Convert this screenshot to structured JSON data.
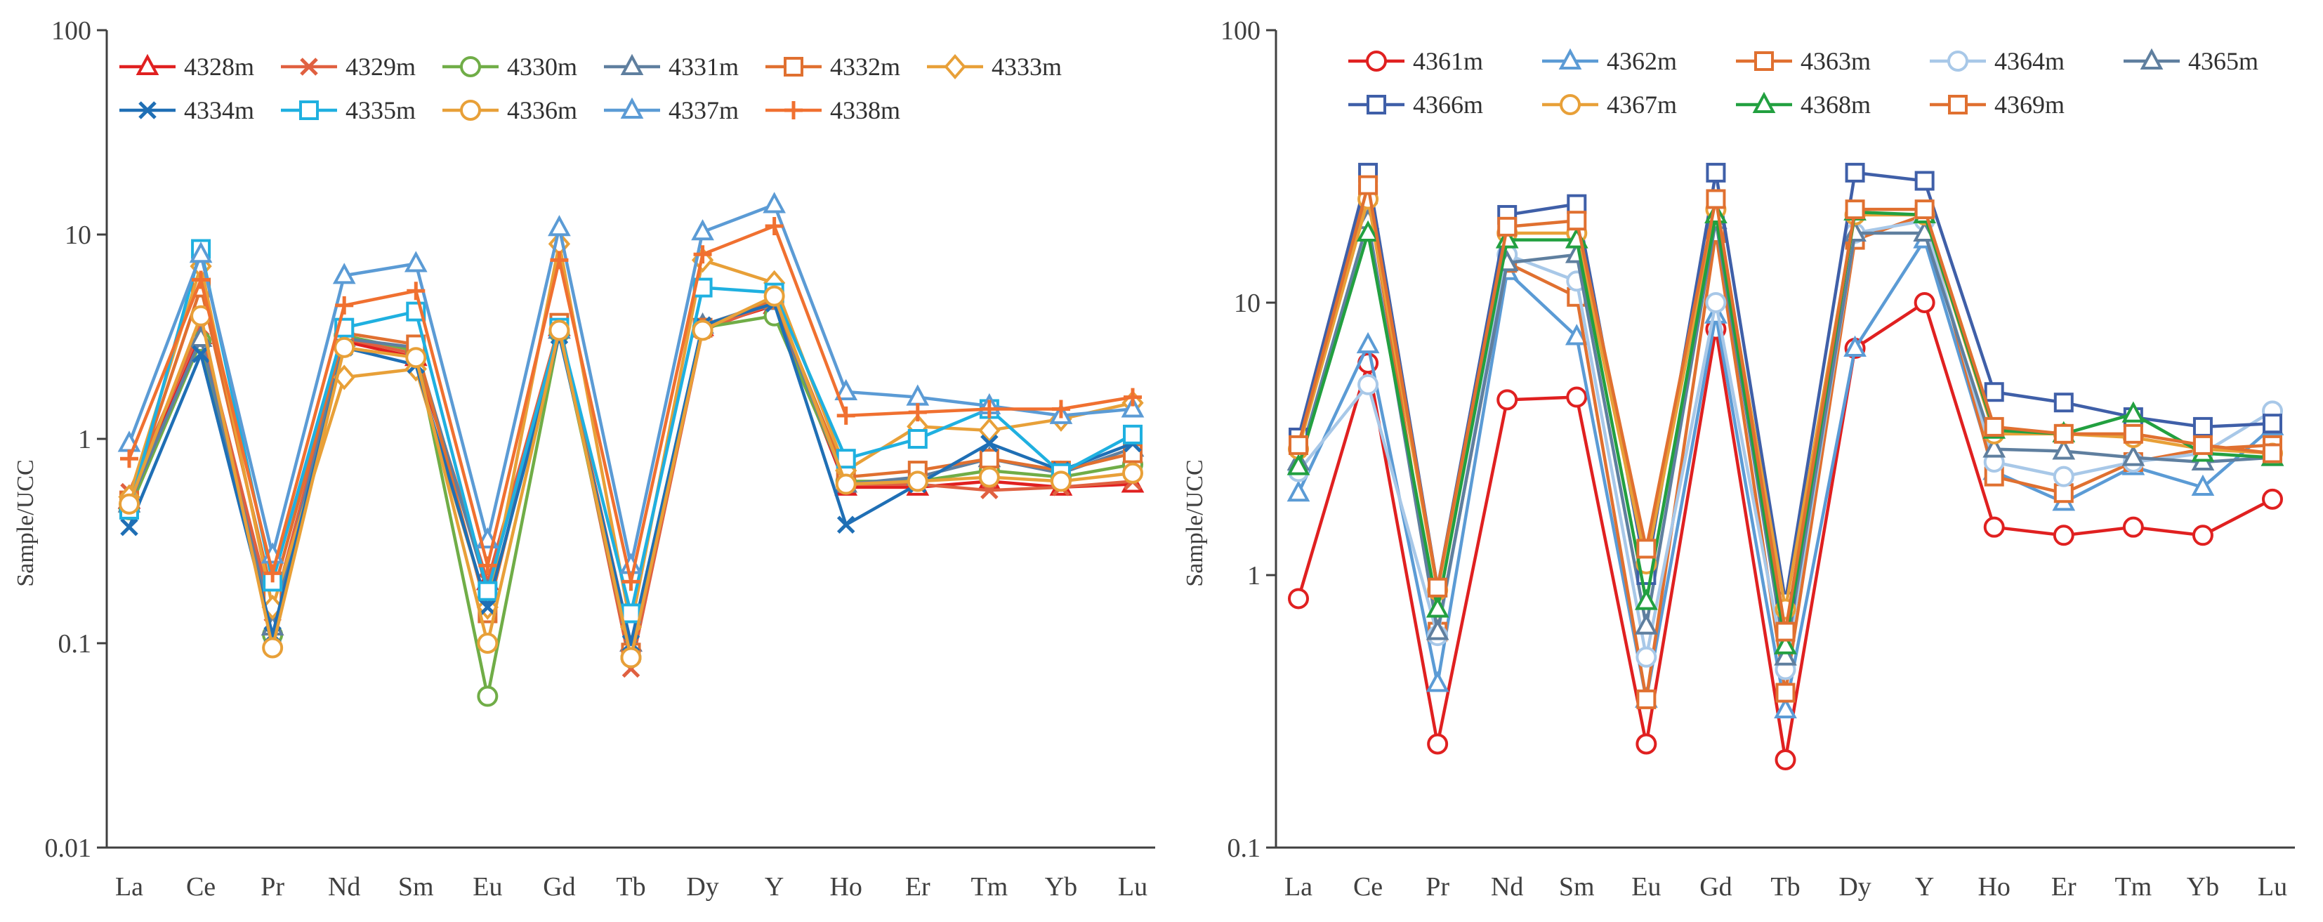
{
  "chart_data": [
    {
      "type": "line",
      "yscale": "log",
      "ylabel": "Sample/UCC",
      "ylim": [
        0.01,
        100
      ],
      "yticks": [
        "0.01",
        "0.1",
        "1",
        "10",
        "100"
      ],
      "categories": [
        "La",
        "Ce",
        "Pr",
        "Nd",
        "Sm",
        "Eu",
        "Gd",
        "Tb",
        "Dy",
        "Y",
        "Ho",
        "Er",
        "Tm",
        "Yb",
        "Lu"
      ],
      "grid": false,
      "legend": "top",
      "series": [
        {
          "name": "4328m",
          "color": "#e02020",
          "marker": "triangle",
          "values": [
            0.5,
            3.2,
            0.12,
            3.0,
            2.5,
            0.2,
            3.5,
            0.1,
            3.5,
            4.5,
            0.58,
            0.58,
            0.62,
            0.58,
            0.6
          ]
        },
        {
          "name": "4329m",
          "color": "#e06040",
          "marker": "x",
          "values": [
            0.55,
            3.5,
            0.14,
            3.1,
            2.6,
            0.2,
            3.6,
            0.075,
            3.4,
            4.6,
            0.6,
            0.6,
            0.56,
            0.58,
            0.62
          ]
        },
        {
          "name": "4330m",
          "color": "#70ad47",
          "marker": "circle",
          "values": [
            0.45,
            3.0,
            0.11,
            3.2,
            2.7,
            0.055,
            3.3,
            0.085,
            3.5,
            4.0,
            0.62,
            0.62,
            0.7,
            0.65,
            0.75
          ]
        },
        {
          "name": "4331m",
          "color": "#5f7f9f",
          "marker": "triangle",
          "values": [
            0.48,
            3.1,
            0.12,
            3.1,
            2.8,
            0.18,
            3.4,
            0.1,
            3.6,
            4.7,
            0.6,
            0.65,
            0.8,
            0.68,
            0.9
          ]
        },
        {
          "name": "4332m",
          "color": "#e07030",
          "marker": "square",
          "values": [
            0.5,
            5.5,
            0.17,
            3.3,
            2.9,
            0.14,
            3.7,
            0.09,
            3.5,
            4.8,
            0.65,
            0.7,
            0.8,
            0.7,
            0.85
          ]
        },
        {
          "name": "4333m",
          "color": "#e8a038",
          "marker": "diamond",
          "values": [
            0.52,
            7.0,
            0.15,
            2.0,
            2.2,
            0.15,
            9.0,
            0.12,
            7.5,
            5.8,
            0.7,
            1.15,
            1.1,
            1.25,
            1.5
          ]
        },
        {
          "name": "4334m",
          "color": "#1f6fb5",
          "marker": "x",
          "values": [
            0.37,
            2.6,
            0.11,
            2.8,
            2.3,
            0.15,
            3.2,
            0.1,
            3.6,
            4.6,
            0.38,
            0.6,
            0.95,
            0.7,
            0.95
          ]
        },
        {
          "name": "4335m",
          "color": "#1fb0e0",
          "marker": "square",
          "values": [
            0.45,
            8.5,
            0.2,
            3.5,
            4.2,
            0.18,
            3.5,
            0.14,
            5.5,
            5.2,
            0.8,
            1.0,
            1.4,
            0.68,
            1.05
          ]
        },
        {
          "name": "4336m",
          "color": "#e8a038",
          "marker": "circle",
          "values": [
            0.48,
            4.0,
            0.095,
            2.8,
            2.5,
            0.1,
            3.4,
            0.085,
            3.4,
            5.0,
            0.6,
            0.62,
            0.65,
            0.62,
            0.68
          ]
        },
        {
          "name": "4337m",
          "color": "#5b9bd5",
          "marker": "triangle",
          "values": [
            0.95,
            8.0,
            0.27,
            6.3,
            7.2,
            0.32,
            10.8,
            0.24,
            10.3,
            14.0,
            1.7,
            1.6,
            1.45,
            1.3,
            1.4
          ]
        },
        {
          "name": "4338m",
          "color": "#f07030",
          "marker": "plus",
          "values": [
            0.8,
            6.0,
            0.22,
            4.5,
            5.3,
            0.24,
            7.5,
            0.2,
            8.0,
            11.0,
            1.3,
            1.35,
            1.4,
            1.4,
            1.6
          ]
        }
      ]
    },
    {
      "type": "line",
      "yscale": "log",
      "ylabel": "Sample/UCC",
      "ylim": [
        0.1,
        100
      ],
      "yticks": [
        "0.1",
        "1",
        "10",
        "100"
      ],
      "categories": [
        "La",
        "Ce",
        "Pr",
        "Nd",
        "Sm",
        "Eu",
        "Gd",
        "Tb",
        "Dy",
        "Y",
        "Ho",
        "Er",
        "Tm",
        "Yb",
        "Lu"
      ],
      "grid": false,
      "legend": "top",
      "series": [
        {
          "name": "4361m",
          "color": "#e02020",
          "marker": "circle",
          "values": [
            0.82,
            6.0,
            0.24,
            4.4,
            4.5,
            0.24,
            8.0,
            0.21,
            6.8,
            10.0,
            1.5,
            1.4,
            1.5,
            1.4,
            1.9
          ]
        },
        {
          "name": "4362m",
          "color": "#5b9bd5",
          "marker": "triangle",
          "values": [
            2.0,
            7.0,
            0.4,
            13.0,
            7.5,
            0.35,
            9.0,
            0.32,
            6.8,
            17.0,
            2.4,
            1.85,
            2.5,
            2.1,
            3.5
          ]
        },
        {
          "name": "4363m",
          "color": "#e07030",
          "marker": "square",
          "values": [
            3.0,
            25.0,
            0.62,
            14.0,
            10.5,
            0.35,
            18.0,
            0.37,
            17.0,
            21.0,
            2.3,
            2.0,
            2.6,
            2.9,
            3.0
          ]
        },
        {
          "name": "4364m",
          "color": "#a8c8e8",
          "marker": "circle",
          "values": [
            2.4,
            5.0,
            0.6,
            15.0,
            12.0,
            0.5,
            10.0,
            0.45,
            18.0,
            20.0,
            2.6,
            2.3,
            2.6,
            2.8,
            4.0
          ]
        },
        {
          "name": "4365m",
          "color": "#5f7f9f",
          "marker": "triangle",
          "values": [
            2.6,
            20.0,
            0.62,
            14.0,
            15.0,
            0.65,
            20.0,
            0.5,
            18.0,
            18.0,
            2.9,
            2.85,
            2.7,
            2.6,
            2.7
          ]
        },
        {
          "name": "4366m",
          "color": "#3f5fa8",
          "marker": "square",
          "values": [
            3.2,
            30.0,
            0.9,
            21.0,
            23.0,
            1.0,
            30.0,
            0.8,
            30.0,
            28.0,
            4.7,
            4.3,
            3.8,
            3.5,
            3.6
          ]
        },
        {
          "name": "4367m",
          "color": "#e8a038",
          "marker": "circle",
          "values": [
            2.9,
            24.0,
            0.88,
            18.0,
            18.0,
            1.1,
            22.0,
            0.75,
            21.0,
            21.0,
            3.3,
            3.3,
            3.2,
            2.9,
            2.8
          ]
        },
        {
          "name": "4368m",
          "color": "#22a040",
          "marker": "triangle",
          "values": [
            2.5,
            18.0,
            0.75,
            17.0,
            17.0,
            0.8,
            21.0,
            0.55,
            21.5,
            21.0,
            3.4,
            3.3,
            3.9,
            2.8,
            2.7
          ]
        },
        {
          "name": "4369m",
          "color": "#e07030",
          "marker": "square",
          "values": [
            3.0,
            27.0,
            0.9,
            19.0,
            20.0,
            1.25,
            24.0,
            0.62,
            22.0,
            22.0,
            3.5,
            3.3,
            3.3,
            3.0,
            2.8
          ]
        }
      ]
    }
  ]
}
